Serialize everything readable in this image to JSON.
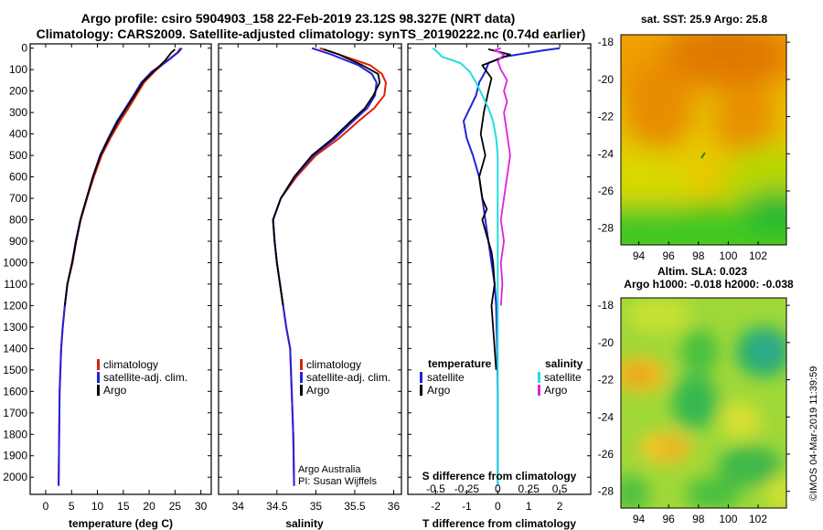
{
  "title": {
    "line1": "Argo profile: csiro 5904903_158 22-Feb-2019 23.12S 98.327E (NRT data)",
    "line2": "Climatology: CARS2009. Satellite-adjusted climatology: synTS_20190222.nc (0.74d earlier)"
  },
  "colors": {
    "climatology": "#dd2200",
    "satellite_adj": "#2222dd",
    "argo": "#000000",
    "temp_satellite": "#2222dd",
    "sal_satellite": "#22dddd",
    "sal_argo": "#dd22dd"
  },
  "chart_data": [
    {
      "type": "line",
      "name": "temperature-profile",
      "xlabel": "temperature (deg C)",
      "ylabel": "",
      "xlim": [
        -3,
        32
      ],
      "ylim": [
        2080,
        -20
      ],
      "xticks": [
        0,
        5,
        10,
        15,
        20,
        25,
        30
      ],
      "yticks": [
        0,
        100,
        200,
        300,
        400,
        500,
        600,
        700,
        800,
        900,
        1000,
        1100,
        1200,
        1300,
        1400,
        1500,
        1600,
        1700,
        1800,
        1900,
        2000
      ],
      "series": [
        {
          "name": "climatology",
          "x": [
            2.5,
            2.6,
            2.7,
            3,
            3.3,
            3.7,
            4.2,
            5.2,
            5.9,
            6.8,
            8,
            9.3,
            10.8,
            12.5,
            14.4,
            16,
            17.5,
            19,
            21,
            23.4,
            25.5,
            26
          ],
          "y": [
            2040,
            1800,
            1600,
            1400,
            1300,
            1200,
            1100,
            1000,
            900,
            800,
            700,
            600,
            500,
            420,
            340,
            280,
            220,
            160,
            110,
            60,
            20,
            0
          ]
        },
        {
          "name": "satellite-adj. clim.",
          "x": [
            2.5,
            2.6,
            2.7,
            3,
            3.3,
            3.7,
            4.2,
            5.1,
            5.8,
            6.7,
            7.9,
            9.1,
            10.5,
            12.1,
            13.8,
            15.4,
            17,
            18.5,
            20.5,
            23.5,
            25.6,
            26.3
          ],
          "y": [
            2040,
            1800,
            1600,
            1400,
            1300,
            1200,
            1100,
            1000,
            900,
            800,
            700,
            600,
            500,
            420,
            340,
            280,
            220,
            160,
            110,
            60,
            20,
            0
          ]
        },
        {
          "name": "Argo",
          "x": [
            3.7,
            4.2,
            5.1,
            5.9,
            6.7,
            7.9,
            9.1,
            10.6,
            12.2,
            14.0,
            15.6,
            17.2,
            18.7,
            20.8,
            23.0,
            24.3,
            25.0
          ],
          "y": [
            1200,
            1100,
            1000,
            900,
            800,
            700,
            600,
            500,
            420,
            340,
            280,
            220,
            160,
            110,
            60,
            20,
            5
          ]
        }
      ]
    },
    {
      "type": "line",
      "name": "salinity-profile",
      "xlabel": "salinity",
      "xlim": [
        33.75,
        36.1
      ],
      "ylim": [
        2080,
        -20
      ],
      "xticks": [
        34,
        34.5,
        35,
        35.5,
        36
      ],
      "series": [
        {
          "name": "climatology",
          "x": [
            34.72,
            34.71,
            34.69,
            34.67,
            34.62,
            34.58,
            34.54,
            34.5,
            34.47,
            34.45,
            34.55,
            34.75,
            35.0,
            35.3,
            35.55,
            35.75,
            35.88,
            35.9,
            35.85,
            35.7,
            35.3,
            35.05
          ],
          "y": [
            2040,
            1800,
            1600,
            1400,
            1300,
            1200,
            1100,
            1000,
            900,
            800,
            700,
            600,
            500,
            420,
            340,
            280,
            220,
            160,
            120,
            80,
            30,
            0
          ]
        },
        {
          "name": "satellite-adj. clim.",
          "x": [
            34.72,
            34.71,
            34.69,
            34.67,
            34.62,
            34.58,
            34.54,
            34.5,
            34.47,
            34.45,
            34.55,
            34.73,
            34.97,
            35.25,
            35.48,
            35.66,
            35.76,
            35.78,
            35.72,
            35.55,
            35.2,
            34.95
          ],
          "y": [
            2040,
            1800,
            1600,
            1400,
            1300,
            1200,
            1100,
            1000,
            900,
            800,
            700,
            600,
            500,
            420,
            340,
            280,
            220,
            160,
            120,
            80,
            30,
            0
          ]
        },
        {
          "name": "Argo",
          "x": [
            34.58,
            34.54,
            34.5,
            34.47,
            34.45,
            34.55,
            34.72,
            34.95,
            35.22,
            35.45,
            35.63,
            35.74,
            35.82,
            35.8,
            35.6,
            35.3,
            35.1
          ],
          "y": [
            1200,
            1100,
            1000,
            900,
            800,
            700,
            600,
            500,
            420,
            340,
            280,
            220,
            160,
            120,
            80,
            30,
            5
          ]
        }
      ],
      "annotations": [
        "Argo Australia",
        "PI: Susan Wijffels"
      ]
    },
    {
      "type": "line",
      "name": "difference-profile",
      "xlabel": "T difference from climatology",
      "xlabel_top": "S difference from climatology",
      "xlim": [
        -2.9,
        3.0
      ],
      "ylim": [
        2080,
        -20
      ],
      "xticks": [
        -2,
        -1,
        0,
        1,
        2
      ],
      "xticks_top_labels": [
        "-0.5",
        "-0.25",
        "0",
        "0.25",
        "0.5"
      ],
      "xticks_top_pos": [
        -2,
        -1,
        0,
        1,
        2
      ],
      "series": [
        {
          "name": "temperature satellite",
          "x": [
            0,
            0,
            0,
            -0.02,
            -0.05,
            -0.1,
            -0.2,
            -0.3,
            -0.4,
            -0.5,
            -0.6,
            -0.8,
            -1.0,
            -1.1,
            -0.9,
            -0.7,
            -0.6,
            -0.4,
            -0.3,
            0.2,
            1.5,
            2.0
          ],
          "y": [
            2040,
            1800,
            1600,
            1400,
            1200,
            1100,
            1000,
            900,
            800,
            700,
            600,
            500,
            420,
            340,
            280,
            220,
            160,
            110,
            70,
            40,
            10,
            0
          ]
        },
        {
          "name": "temperature Argo",
          "x": [
            -0.05,
            -0.1,
            -0.15,
            -0.2,
            -0.1,
            -0.15,
            -0.2,
            -0.3,
            -0.4,
            -0.5,
            -0.35,
            -0.5,
            -0.6,
            -0.4,
            -0.55,
            -0.45,
            -0.3,
            -0.2,
            -0.5,
            0.4,
            -0.3
          ],
          "y": [
            1500,
            1400,
            1300,
            1200,
            1100,
            1000,
            950,
            900,
            850,
            800,
            750,
            700,
            600,
            500,
            400,
            300,
            200,
            140,
            80,
            30,
            5
          ]
        },
        {
          "name": "salinity satellite",
          "x": [
            0,
            0,
            0,
            0,
            0,
            0,
            0,
            0,
            0,
            0,
            0,
            0,
            -0.05,
            -0.15,
            -0.3,
            -0.5,
            -0.7,
            -0.9,
            -1.2,
            -1.8,
            -2.0,
            -2.1
          ],
          "y": [
            2040,
            1800,
            1600,
            1400,
            1200,
            1100,
            1000,
            900,
            800,
            700,
            600,
            500,
            420,
            340,
            280,
            220,
            160,
            110,
            70,
            40,
            10,
            0
          ]
        },
        {
          "name": "salinity Argo",
          "x": [
            0.1,
            0.15,
            0.1,
            0.2,
            0.1,
            0.2,
            0.3,
            0.4,
            0.3,
            0.2,
            0.3,
            0.2,
            0.3,
            0.1,
            0.0,
            0.2,
            -0.1,
            0.1
          ],
          "y": [
            1200,
            1100,
            1000,
            900,
            800,
            700,
            600,
            500,
            400,
            300,
            250,
            200,
            150,
            100,
            60,
            30,
            10,
            0
          ]
        }
      ],
      "legend_temperature": "temperature",
      "legend_salinity": "salinity",
      "legend_items": [
        "satellite",
        "Argo",
        "satellite",
        "Argo"
      ]
    },
    {
      "type": "heatmap",
      "name": "sst-map",
      "title": "sat. SST: 25.9 Argo: 25.8",
      "xticks": [
        94,
        96,
        98,
        100,
        102
      ],
      "yticks": [
        -18,
        -20,
        -22,
        -24,
        -26,
        -28
      ],
      "xlim": [
        92.8,
        103.9
      ],
      "ylim": [
        -28.9,
        -17.6
      ]
    },
    {
      "type": "heatmap",
      "name": "sla-map",
      "title_line1": "Altim. SLA: 0.023",
      "title_line2": "Argo h1000: -0.018 h2000: -0.038",
      "xticks": [
        94,
        96,
        98,
        100,
        102
      ],
      "yticks": [
        -18,
        -20,
        -22,
        -24,
        -26,
        -28
      ],
      "xlim": [
        92.8,
        103.9
      ],
      "ylim": [
        -28.9,
        -17.6
      ]
    }
  ],
  "legend": {
    "climatology": "climatology",
    "satellite": "satellite-adj. clim.",
    "argo": "Argo"
  },
  "credit": "©IMOS 04-Mar-2019 11:39:59"
}
